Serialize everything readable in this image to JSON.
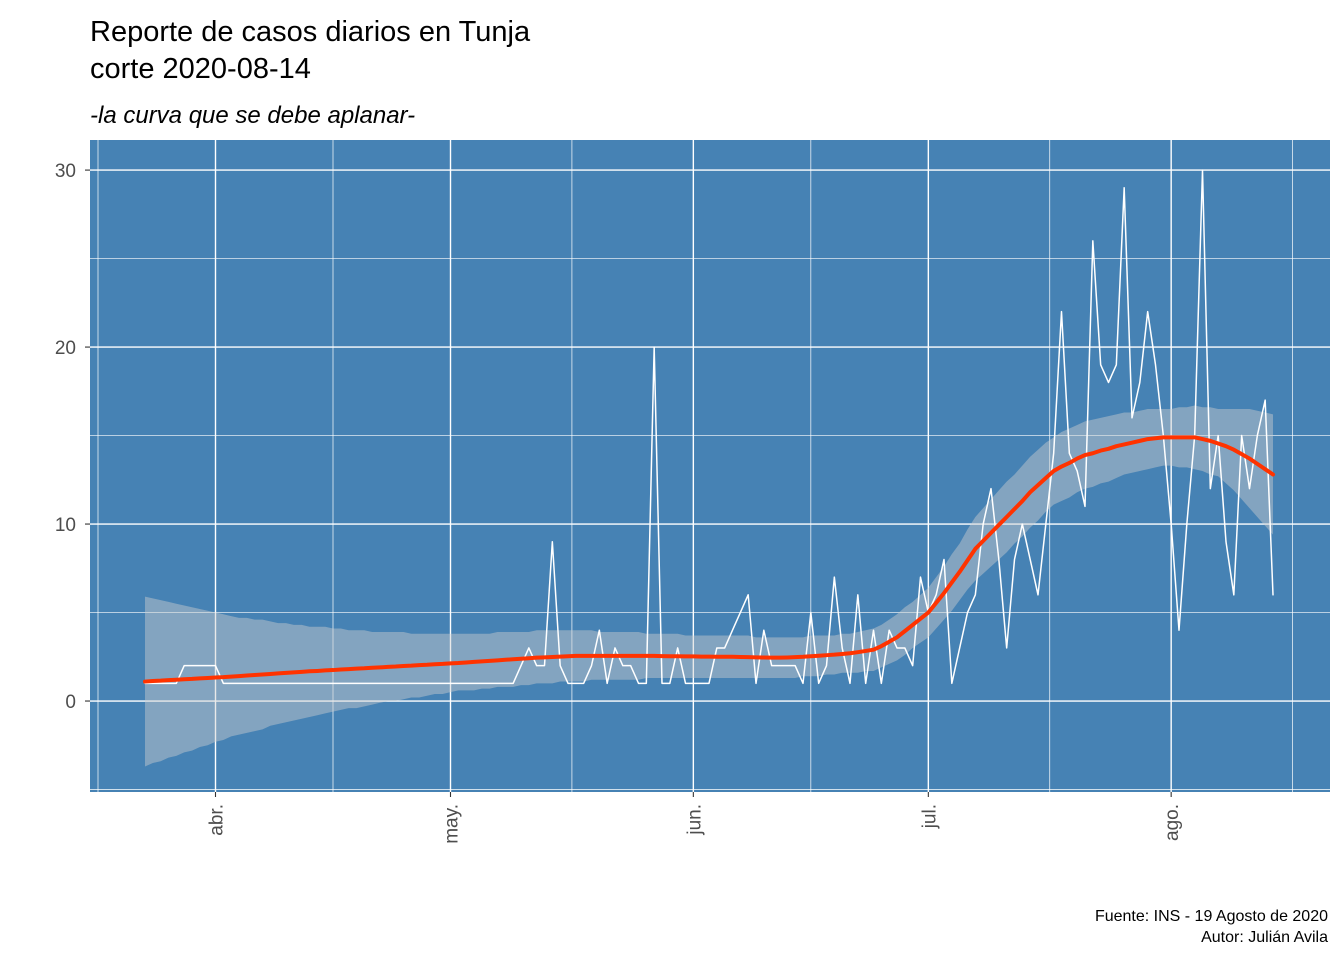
{
  "chart_data": {
    "type": "line",
    "title": [
      "Reporte de casos diarios en Tunja",
      "corte 2020-08-14"
    ],
    "subtitle": "-la curva que se debe aplanar-",
    "caption": [
      "Fuente: INS - 19 Agosto de 2020",
      "Autor: Julián Avila"
    ],
    "background": "#4682b4",
    "grid": true,
    "categories": [
      null,
      null,
      null,
      null,
      null,
      null,
      null,
      null,
      null,
      "abr.",
      null,
      null,
      null,
      null,
      null,
      null,
      null,
      null,
      null,
      null,
      null,
      null,
      null,
      null,
      null,
      null,
      null,
      null,
      null,
      null,
      null,
      null,
      null,
      null,
      null,
      null,
      null,
      null,
      null,
      "may.",
      null,
      null,
      null,
      null,
      null,
      null,
      null,
      null,
      null,
      null,
      null,
      null,
      null,
      null,
      null,
      null,
      null,
      null,
      null,
      null,
      null,
      null,
      null,
      null,
      null,
      null,
      null,
      null,
      null,
      null,
      "jun.",
      null,
      null,
      null,
      null,
      null,
      null,
      null,
      null,
      null,
      null,
      null,
      null,
      null,
      null,
      null,
      null,
      null,
      null,
      null,
      null,
      null,
      null,
      null,
      null,
      null,
      null,
      null,
      null,
      null,
      "jul.",
      null,
      null,
      null,
      null,
      null,
      null,
      null,
      null,
      null,
      null,
      null,
      null,
      null,
      null,
      null,
      null,
      null,
      null,
      null,
      null,
      null,
      null,
      null,
      null,
      null,
      null,
      null,
      null,
      null,
      null,
      "ago.",
      null,
      null,
      null,
      null,
      null,
      null,
      null,
      null,
      null,
      null,
      null,
      null,
      null
    ],
    "ylim": [
      -5.14,
      31.7
    ],
    "yticks": [
      0,
      10,
      20,
      30
    ],
    "series": [
      {
        "color": "#ffffff",
        "values": [
          1,
          1,
          1,
          1,
          1,
          2,
          2,
          2,
          2,
          2,
          1,
          1,
          1,
          1,
          1,
          1,
          1,
          1,
          1,
          1,
          1,
          1,
          1,
          1,
          1,
          1,
          1,
          1,
          1,
          1,
          1,
          1,
          1,
          1,
          1,
          1,
          1,
          1,
          1,
          1,
          1,
          1,
          1,
          1,
          1,
          1,
          1,
          1,
          2,
          3,
          2,
          2,
          9,
          2,
          1,
          1,
          1,
          2,
          4,
          1,
          3,
          2,
          2,
          1,
          1,
          20,
          1,
          1,
          3,
          1,
          1,
          1,
          1,
          3,
          3,
          4,
          5,
          6,
          1,
          4,
          2,
          2,
          2,
          2,
          1,
          5,
          1,
          2,
          7,
          3,
          1,
          6,
          1,
          4,
          1,
          4,
          3,
          3,
          2,
          7,
          5,
          6,
          8,
          1,
          3,
          5,
          6,
          10,
          12,
          8,
          3,
          8,
          10,
          8,
          6,
          10,
          14,
          22,
          14,
          13,
          11,
          26,
          19,
          18,
          19,
          29,
          16,
          18,
          22,
          19,
          15,
          10,
          4,
          10,
          15,
          30,
          12,
          15,
          9,
          6,
          15,
          12,
          15,
          17,
          6
        ]
      },
      {
        "color": "#ff3300",
        "band_color": "#cfcfcf",
        "values": [
          1.1,
          1.13,
          1.15,
          1.18,
          1.2,
          1.23,
          1.25,
          1.28,
          1.3,
          1.33,
          1.35,
          1.38,
          1.41,
          1.44,
          1.47,
          1.5,
          1.53,
          1.56,
          1.59,
          1.62,
          1.65,
          1.68,
          1.7,
          1.73,
          1.75,
          1.78,
          1.8,
          1.83,
          1.85,
          1.88,
          1.9,
          1.93,
          1.95,
          1.98,
          2,
          2.03,
          2.05,
          2.08,
          2.1,
          2.13,
          2.15,
          2.18,
          2.21,
          2.24,
          2.27,
          2.3,
          2.33,
          2.36,
          2.39,
          2.42,
          2.45,
          2.47,
          2.49,
          2.51,
          2.53,
          2.55,
          2.55,
          2.55,
          2.55,
          2.55,
          2.55,
          2.55,
          2.55,
          2.55,
          2.55,
          2.55,
          2.54,
          2.53,
          2.53,
          2.52,
          2.52,
          2.51,
          2.51,
          2.5,
          2.5,
          2.5,
          2.49,
          2.48,
          2.47,
          2.46,
          2.45,
          2.45,
          2.46,
          2.48,
          2.5,
          2.53,
          2.56,
          2.59,
          2.62,
          2.66,
          2.7,
          2.76,
          2.83,
          2.9,
          3.1,
          3.35,
          3.6,
          3.95,
          4.3,
          4.65,
          5,
          5.55,
          6.1,
          6.7,
          7.3,
          7.95,
          8.6,
          9.05,
          9.5,
          9.95,
          10.4,
          10.85,
          11.3,
          11.8,
          12.2,
          12.6,
          13,
          13.25,
          13.45,
          13.7,
          13.9,
          14,
          14.15,
          14.25,
          14.4,
          14.5,
          14.6,
          14.7,
          14.8,
          14.85,
          14.9,
          14.9,
          14.9,
          14.9,
          14.9,
          14.8,
          14.7,
          14.55,
          14.4,
          14.2,
          13.95,
          13.7,
          13.4,
          13.1,
          12.8
        ],
        "lower": [
          -3.7,
          -3.5,
          -3.4,
          -3.2,
          -3.1,
          -2.9,
          -2.8,
          -2.6,
          -2.5,
          -2.3,
          -2.2,
          -2.0,
          -1.9,
          -1.8,
          -1.7,
          -1.6,
          -1.4,
          -1.3,
          -1.2,
          -1.1,
          -1.0,
          -0.9,
          -0.8,
          -0.7,
          -0.6,
          -0.5,
          -0.4,
          -0.4,
          -0.3,
          -0.2,
          -0.1,
          0,
          0,
          0.1,
          0.2,
          0.2,
          0.3,
          0.4,
          0.4,
          0.5,
          0.6,
          0.6,
          0.6,
          0.7,
          0.7,
          0.8,
          0.8,
          0.8,
          0.9,
          0.9,
          1,
          1,
          1,
          1.1,
          1.1,
          1.1,
          1.1,
          1.2,
          1.2,
          1.2,
          1.2,
          1.2,
          1.2,
          1.2,
          1.3,
          1.3,
          1.3,
          1.3,
          1.3,
          1.3,
          1.3,
          1.3,
          1.3,
          1.3,
          1.3,
          1.3,
          1.3,
          1.3,
          1.3,
          1.3,
          1.3,
          1.3,
          1.3,
          1.3,
          1.4,
          1.4,
          1.4,
          1.5,
          1.5,
          1.6,
          1.6,
          1.6,
          1.7,
          1.7,
          1.9,
          2.1,
          2.3,
          2.6,
          3,
          3.3,
          3.6,
          4.1,
          4.6,
          5.1,
          5.7,
          6.3,
          6.8,
          7.2,
          7.6,
          8,
          8.4,
          8.9,
          9.3,
          9.8,
          10.2,
          10.7,
          11.1,
          11.3,
          11.5,
          11.8,
          12,
          12.1,
          12.3,
          12.4,
          12.6,
          12.8,
          12.9,
          13,
          13.1,
          13.2,
          13.3,
          13.3,
          13.2,
          13.2,
          13.1,
          13,
          12.8,
          12.7,
          12.3,
          11.9,
          11.4,
          10.9,
          10.4,
          9.9,
          9.4
        ],
        "upper": [
          5.9,
          5.8,
          5.7,
          5.6,
          5.5,
          5.4,
          5.3,
          5.2,
          5.1,
          5,
          4.9,
          4.8,
          4.7,
          4.7,
          4.6,
          4.6,
          4.5,
          4.4,
          4.4,
          4.3,
          4.3,
          4.2,
          4.2,
          4.2,
          4.1,
          4.1,
          4,
          4,
          4,
          3.9,
          3.9,
          3.9,
          3.9,
          3.9,
          3.8,
          3.8,
          3.8,
          3.8,
          3.8,
          3.8,
          3.8,
          3.8,
          3.8,
          3.8,
          3.8,
          3.9,
          3.9,
          3.9,
          3.9,
          3.9,
          4,
          4,
          4,
          4,
          4,
          4,
          4,
          4,
          3.9,
          3.9,
          3.9,
          3.9,
          3.9,
          3.9,
          3.8,
          3.8,
          3.8,
          3.8,
          3.8,
          3.7,
          3.7,
          3.7,
          3.7,
          3.7,
          3.7,
          3.7,
          3.7,
          3.7,
          3.6,
          3.6,
          3.6,
          3.6,
          3.6,
          3.6,
          3.6,
          3.7,
          3.7,
          3.7,
          3.7,
          3.8,
          3.8,
          3.9,
          4,
          4.1,
          4.3,
          4.6,
          4.9,
          5.3,
          5.6,
          6,
          6.4,
          7,
          7.6,
          8.3,
          8.9,
          9.7,
          10.4,
          10.9,
          11.4,
          11.9,
          12.4,
          12.8,
          13.3,
          13.8,
          14.2,
          14.6,
          14.9,
          15.2,
          15.4,
          15.6,
          15.8,
          15.9,
          16,
          16.1,
          16.2,
          16.3,
          16.3,
          16.4,
          16.5,
          16.5,
          16.5,
          16.5,
          16.6,
          16.6,
          16.7,
          16.6,
          16.6,
          16.5,
          16.5,
          16.5,
          16.5,
          16.5,
          16.4,
          16.3,
          16.2
        ]
      }
    ]
  }
}
